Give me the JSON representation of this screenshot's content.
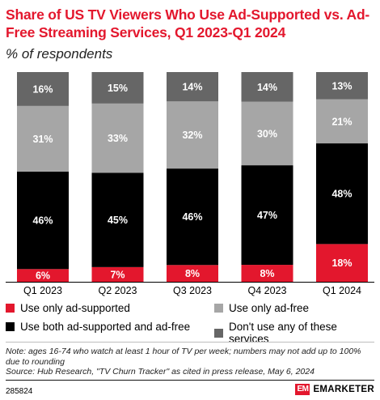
{
  "title": "Share of US TV Viewers Who Use Ad-Supported vs. Ad-Free Streaming Services, Q1 2023-Q1 2024",
  "subtitle": "% of respondents",
  "colors": {
    "ad_supported": "#e3172d",
    "both": "#000000",
    "ad_free": "#a6a6a6",
    "none": "#666666"
  },
  "chart_data": {
    "type": "bar",
    "stacked": true,
    "unit": "%",
    "categories": [
      "Q1 2023",
      "Q2 2023",
      "Q3 2023",
      "Q4 2023",
      "Q1 2024"
    ],
    "series": [
      {
        "name": "Use only ad-supported",
        "key": "ad_supported",
        "values": [
          6,
          7,
          8,
          8,
          18
        ]
      },
      {
        "name": "Use both ad-supported and ad-free",
        "key": "both",
        "values": [
          46,
          45,
          46,
          47,
          48
        ]
      },
      {
        "name": "Use only ad-free",
        "key": "ad_free",
        "values": [
          31,
          33,
          32,
          30,
          21
        ]
      },
      {
        "name": "Don't use any of these services",
        "key": "none",
        "values": [
          16,
          15,
          14,
          14,
          13
        ]
      }
    ],
    "legend_position": "bottom"
  },
  "legend": [
    {
      "label": "Use only ad-supported",
      "key": "ad_supported"
    },
    {
      "label": "Use only ad-free",
      "key": "ad_free"
    },
    {
      "label": "Use both ad-supported and ad-free",
      "key": "both"
    },
    {
      "label": "Don't use any of these services",
      "key": "none"
    }
  ],
  "note": "Note: ages 16-74 who watch at least 1 hour of TV per week; numbers may not add up to 100% due to rounding",
  "source": "Source: Hub Research, \"TV Churn Tracker\" as cited in press release, May 6, 2024",
  "chart_id": "285824",
  "brand": {
    "mark": "EM",
    "name": "EMARKETER"
  }
}
